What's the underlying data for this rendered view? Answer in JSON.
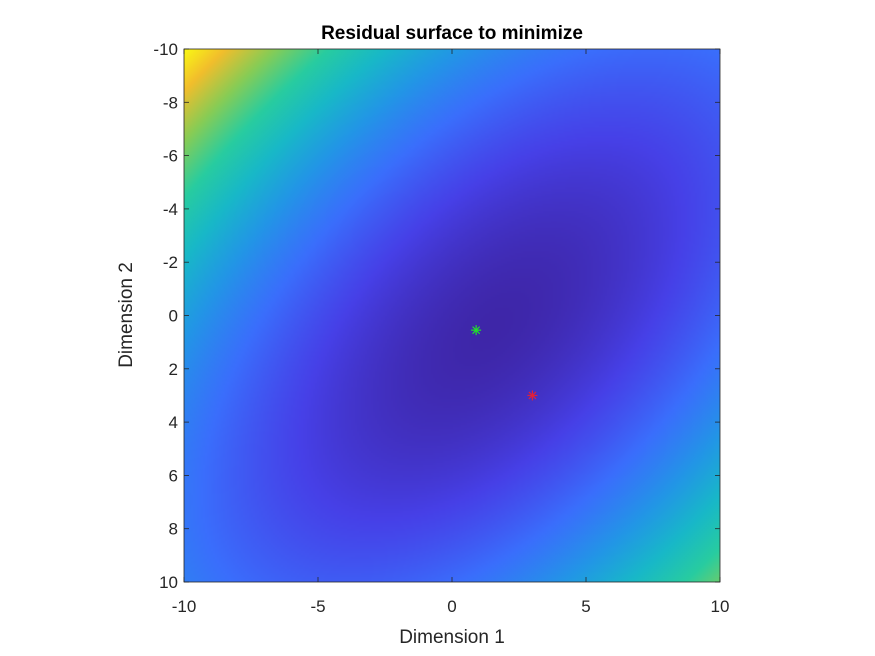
{
  "chart_data": {
    "type": "heatmap",
    "title": "Residual surface to minimize",
    "xlabel": "Dimension 1",
    "ylabel": "Dimension 2",
    "xlim": [
      -10,
      10
    ],
    "ylim": [
      -10,
      10
    ],
    "y_reversed": true,
    "x_ticks": [
      -10,
      -5,
      0,
      5,
      10
    ],
    "y_ticks": [
      -10,
      -8,
      -6,
      -4,
      -2,
      0,
      2,
      4,
      6,
      8,
      10
    ],
    "colormap": "parula",
    "grid": false,
    "legend": "none",
    "markers": [
      {
        "x": 0.9,
        "y": 0.55,
        "symbol": "asterisk",
        "color": "#22e02a"
      },
      {
        "x": 3.0,
        "y": 3.0,
        "symbol": "asterisk",
        "color": "#e0203a"
      }
    ]
  }
}
